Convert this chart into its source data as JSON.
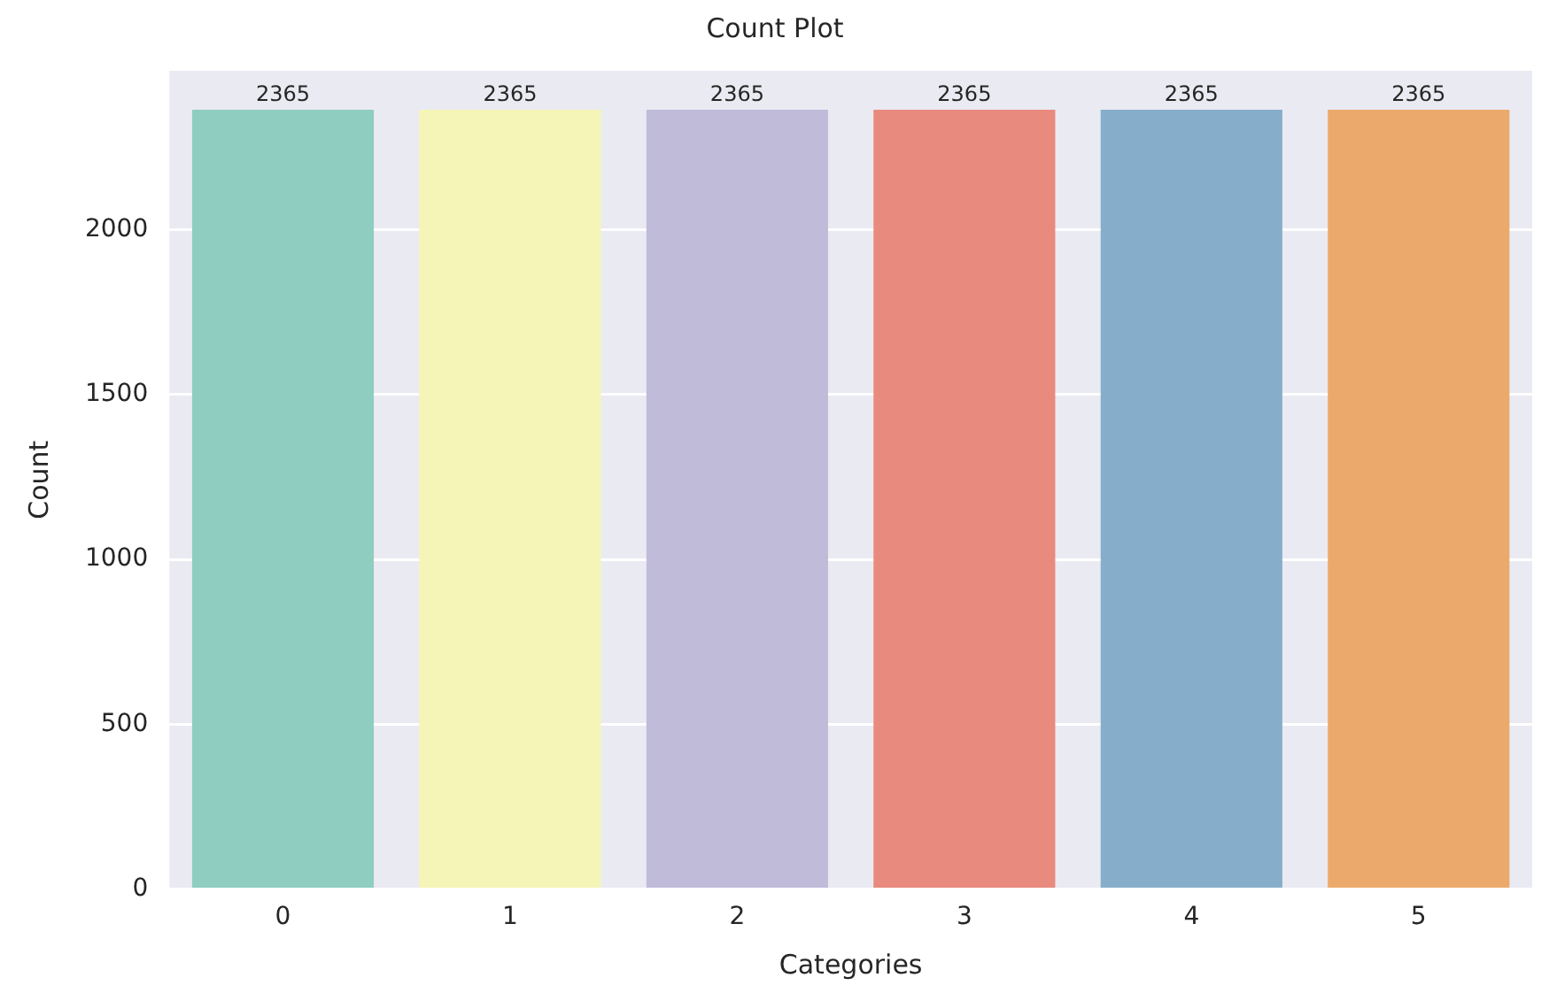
{
  "chart_data": {
    "type": "bar",
    "title": "Count Plot",
    "xlabel": "Categories",
    "ylabel": "Count",
    "categories": [
      "0",
      "1",
      "2",
      "3",
      "4",
      "5"
    ],
    "values": [
      2365,
      2365,
      2365,
      2365,
      2365,
      2365
    ],
    "colors": [
      "#8fcdc1",
      "#f5f5b8",
      "#bfbbd9",
      "#e98a7e",
      "#86aecb",
      "#ebaa6c"
    ],
    "ylim": [
      0,
      2483
    ],
    "yticks": [
      0,
      500,
      1000,
      1500,
      2000
    ],
    "grid": "y",
    "data_labels": true,
    "legend": false
  }
}
